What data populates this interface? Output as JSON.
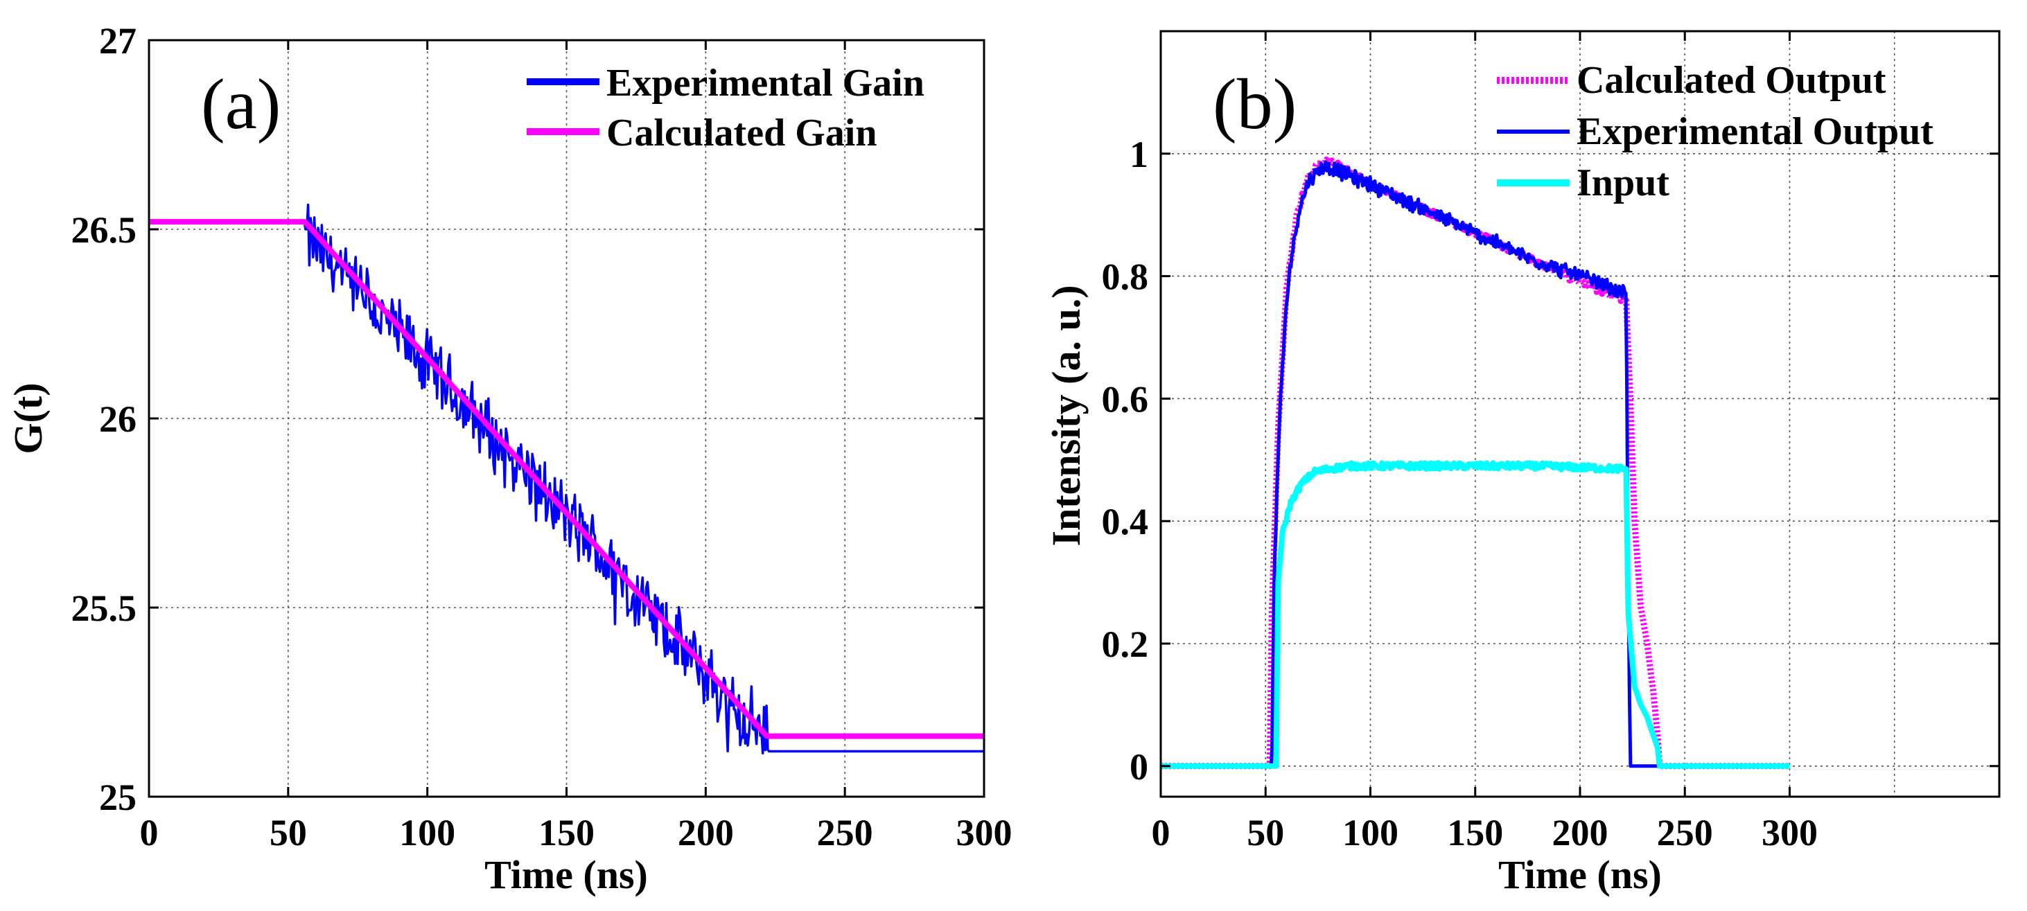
{
  "chart_data": [
    {
      "type": "line",
      "panel_label": "(a)",
      "xlabel": "Time (ns)",
      "ylabel": "G(t)",
      "xlim": [
        0,
        300
      ],
      "ylim": [
        25,
        27
      ],
      "xticks": [
        0,
        50,
        100,
        150,
        200,
        250,
        300
      ],
      "xtick_labels": [
        "0",
        "50",
        "100",
        "150",
        "200",
        "250",
        "300"
      ],
      "yticks": [
        25,
        25.5,
        26,
        26.5,
        27
      ],
      "ytick_labels": [
        "25",
        "25.5",
        "26",
        "26.5",
        "27"
      ],
      "grid": true,
      "legend_position": "top-right",
      "series": [
        {
          "name": "Experimental Gain",
          "color": "#0000ff",
          "style": "noisy",
          "x": [
            0,
            56,
            56.5,
            100,
            150,
            200,
            222,
            222.5,
            300
          ],
          "y": [
            26.52,
            26.52,
            26.48,
            26.14,
            25.74,
            25.32,
            25.15,
            25.12,
            25.12
          ]
        },
        {
          "name": "Calculated Gain",
          "color": "#ff00ff",
          "style": "solid",
          "x": [
            0,
            56,
            222,
            222.5,
            300
          ],
          "y": [
            26.52,
            26.52,
            25.16,
            25.16,
            25.16
          ]
        }
      ]
    },
    {
      "type": "line",
      "panel_label": "(b)",
      "xlabel": "Time (ns)",
      "ylabel": "Intensity (a. u.)",
      "xlim": [
        0,
        400
      ],
      "ylim": [
        -0.05,
        1.2
      ],
      "xticks": [
        0,
        50,
        100,
        150,
        200,
        250,
        300
      ],
      "xtick_labels": [
        "0",
        "50",
        "100",
        "150",
        "200",
        "250",
        "300"
      ],
      "grid_xticks": [
        0,
        50,
        100,
        150,
        200,
        250,
        300,
        350,
        400
      ],
      "yticks": [
        0,
        0.2,
        0.4,
        0.6,
        0.8,
        1.0,
        1.2
      ],
      "ytick_labels": [
        "0",
        "0.2",
        "0.4",
        "0.6",
        "0.8",
        "1",
        ""
      ],
      "grid": true,
      "legend_position": "top-right",
      "series": [
        {
          "name": "Calculated Output",
          "color": "#ff00ff",
          "style": "dotted",
          "x": [
            0,
            52,
            53,
            56,
            60,
            65,
            70,
            77,
            85,
            100,
            125,
            150,
            175,
            200,
            222,
            224,
            226,
            229,
            232,
            235,
            237,
            238,
            300
          ],
          "y": [
            0,
            0,
            0.25,
            0.55,
            0.78,
            0.9,
            0.96,
            0.99,
            0.98,
            0.95,
            0.91,
            0.87,
            0.83,
            0.79,
            0.76,
            0.6,
            0.4,
            0.26,
            0.2,
            0.12,
            0.05,
            0,
            0
          ]
        },
        {
          "name": "Experimental Output",
          "color": "#0000ff",
          "style": "noisy",
          "x": [
            0,
            53,
            54,
            57,
            61,
            66,
            71,
            78,
            86,
            100,
            125,
            150,
            175,
            200,
            222,
            223,
            224,
            300
          ],
          "y": [
            0,
            0,
            0.3,
            0.6,
            0.8,
            0.91,
            0.96,
            0.98,
            0.97,
            0.95,
            0.91,
            0.87,
            0.83,
            0.8,
            0.77,
            0.3,
            0,
            0
          ]
        },
        {
          "name": "Input",
          "color": "#00ffff",
          "style": "solid",
          "x": [
            0,
            55,
            56,
            58,
            62,
            67,
            73,
            80,
            90,
            120,
            150,
            180,
            222,
            223,
            226,
            229,
            232,
            235,
            237,
            238,
            300
          ],
          "y": [
            0,
            0,
            0.3,
            0.38,
            0.43,
            0.46,
            0.48,
            0.485,
            0.49,
            0.49,
            0.49,
            0.49,
            0.485,
            0.25,
            0.13,
            0.1,
            0.08,
            0.05,
            0.03,
            0,
            0
          ]
        }
      ]
    }
  ]
}
